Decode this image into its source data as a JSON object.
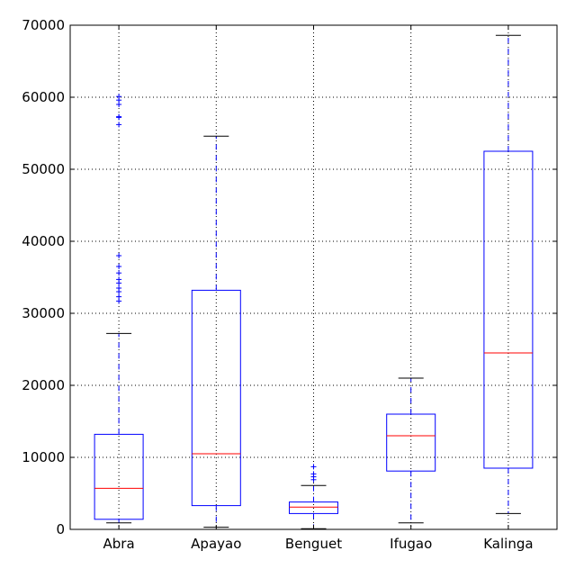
{
  "chart_data": {
    "type": "box",
    "title": "",
    "xlabel": "",
    "ylabel": "",
    "ylim": [
      0,
      70000
    ],
    "yticks": [
      0,
      10000,
      20000,
      30000,
      40000,
      50000,
      60000,
      70000
    ],
    "ytick_labels": [
      "0",
      "10000",
      "20000",
      "30000",
      "40000",
      "50000",
      "60000",
      "70000"
    ],
    "grid": true,
    "legend": "none",
    "categories": [
      "Abra",
      "Apayao",
      "Benguet",
      "Ifugao",
      "Kalinga"
    ],
    "boxes": [
      {
        "category": "Abra",
        "whisker_low": 900,
        "q1": 1400,
        "median": 5700,
        "q3": 13200,
        "whisker_high": 27200,
        "fliers": [
          31700,
          32300,
          33000,
          33500,
          34200,
          34700,
          35600,
          36500,
          38000,
          56200,
          57200,
          57300,
          59000,
          59600,
          60100
        ]
      },
      {
        "category": "Apayao",
        "whisker_low": 300,
        "q1": 3300,
        "median": 10500,
        "q3": 33200,
        "whisker_high": 54600,
        "fliers": []
      },
      {
        "category": "Benguet",
        "whisker_low": 100,
        "q1": 2200,
        "median": 3100,
        "q3": 3800,
        "whisker_high": 6100,
        "fliers": [
          6900,
          7300,
          7700,
          8700
        ]
      },
      {
        "category": "Ifugao",
        "whisker_low": 900,
        "q1": 8100,
        "median": 13000,
        "q3": 16000,
        "whisker_high": 21000,
        "fliers": []
      },
      {
        "category": "Kalinga",
        "whisker_low": 2200,
        "q1": 8500,
        "median": 24500,
        "q3": 52500,
        "whisker_high": 68600,
        "fliers": []
      }
    ],
    "colors": {
      "box": "#0000ff",
      "median": "#ff0000",
      "whisker_cap": "#000000",
      "flier": "#0000ff",
      "grid": "#000000",
      "axis": "#000000"
    }
  }
}
